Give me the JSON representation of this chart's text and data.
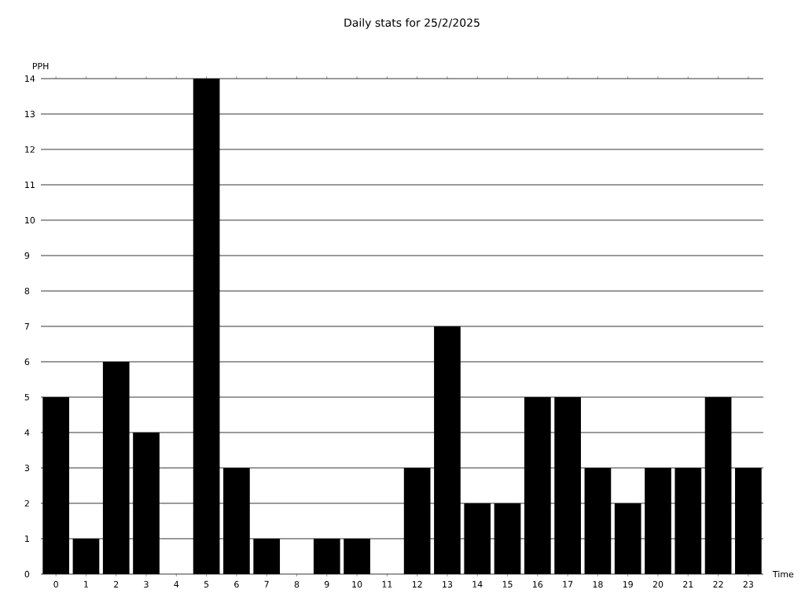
{
  "chart_data": {
    "type": "bar",
    "title": "Daily stats for 25/2/2025",
    "xlabel": "Time",
    "ylabel": "PPH",
    "categories": [
      "0",
      "1",
      "2",
      "3",
      "4",
      "5",
      "6",
      "7",
      "8",
      "9",
      "10",
      "11",
      "12",
      "13",
      "14",
      "15",
      "16",
      "17",
      "18",
      "19",
      "20",
      "21",
      "22",
      "23"
    ],
    "values": [
      5,
      1,
      6,
      4,
      0,
      14,
      3,
      1,
      0,
      1,
      1,
      0,
      3,
      7,
      2,
      2,
      5,
      5,
      3,
      2,
      3,
      3,
      5,
      3
    ],
    "color": "#000000",
    "ylim": [
      0,
      14
    ],
    "yticks": [
      0,
      1,
      2,
      3,
      4,
      5,
      6,
      7,
      8,
      9,
      10,
      11,
      12,
      13,
      14
    ],
    "grid": "y"
  }
}
